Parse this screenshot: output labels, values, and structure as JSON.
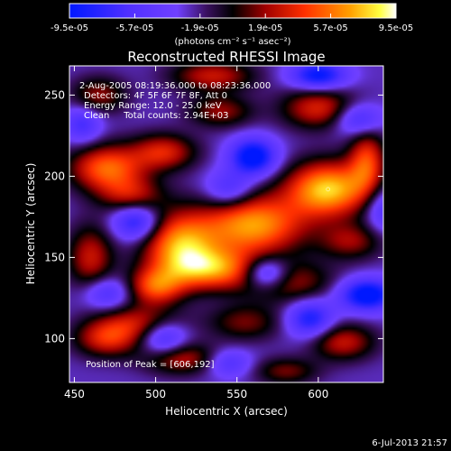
{
  "chart_data": {
    "type": "heatmap",
    "title": "Reconstructed RHESSI Image",
    "xlabel": "Heliocentric X (arcsec)",
    "ylabel": "Heliocentric Y (arcsec)",
    "xlim": [
      447,
      640
    ],
    "ylim": [
      73,
      268
    ],
    "x_ticks": [
      450,
      500,
      550,
      600
    ],
    "y_ticks": [
      100,
      150,
      200,
      250
    ],
    "colorbar": {
      "range": [
        -9.5e-05,
        9.5e-05
      ],
      "tick_labels": [
        "-9.5e-05",
        "-5.7e-05",
        "-1.9e-05",
        "1.9e-05",
        "5.7e-05",
        "9.5e-05"
      ],
      "unit_label": "(photons cm⁻² s⁻¹ asec⁻²)",
      "colormap": "rainbow-black-red-yellow-white"
    },
    "annotations": [
      "2-Aug-2005 08:19:36.000 to 08:23:36.000",
      "Detectors: 4F 5F 6F 7F 8F, Att 0",
      "Energy Range: 12.0 - 25.0 keV",
      "Clean     Total counts: 2.94E+03",
      "Position of Peak = [606,192]"
    ],
    "peak": [
      606,
      192
    ],
    "peak_value": 9.5e-05,
    "blobs": [
      {
        "x": 606,
        "y": 192,
        "v": 9.5e-05,
        "sx": 18,
        "sy": 12
      },
      {
        "x": 560,
        "y": 170,
        "v": 8.5e-05,
        "sx": 22,
        "sy": 13
      },
      {
        "x": 515,
        "y": 158,
        "v": 8e-05,
        "sx": 16,
        "sy": 14
      },
      {
        "x": 535,
        "y": 143,
        "v": 7e-05,
        "sx": 20,
        "sy": 9
      },
      {
        "x": 500,
        "y": 132,
        "v": 6e-05,
        "sx": 12,
        "sy": 8
      },
      {
        "x": 470,
        "y": 205,
        "v": 7e-05,
        "sx": 16,
        "sy": 10
      },
      {
        "x": 505,
        "y": 215,
        "v": 5e-05,
        "sx": 14,
        "sy": 8
      },
      {
        "x": 535,
        "y": 262,
        "v": 4.5e-05,
        "sx": 18,
        "sy": 7
      },
      {
        "x": 600,
        "y": 242,
        "v": 5e-05,
        "sx": 16,
        "sy": 9
      },
      {
        "x": 630,
        "y": 210,
        "v": 5.5e-05,
        "sx": 8,
        "sy": 14
      },
      {
        "x": 485,
        "y": 188,
        "v": 4e-05,
        "sx": 14,
        "sy": 8
      },
      {
        "x": 460,
        "y": 150,
        "v": 4.5e-05,
        "sx": 10,
        "sy": 14
      },
      {
        "x": 490,
        "y": 110,
        "v": 4e-05,
        "sx": 18,
        "sy": 8
      },
      {
        "x": 470,
        "y": 100,
        "v": 5e-05,
        "sx": 14,
        "sy": 8
      },
      {
        "x": 515,
        "y": 88,
        "v": 4.5e-05,
        "sx": 16,
        "sy": 7
      },
      {
        "x": 580,
        "y": 135,
        "v": 4e-05,
        "sx": 20,
        "sy": 9
      },
      {
        "x": 620,
        "y": 160,
        "v": 3.5e-05,
        "sx": 14,
        "sy": 8
      },
      {
        "x": 555,
        "y": 110,
        "v": 3e-05,
        "sx": 16,
        "sy": 8
      },
      {
        "x": 615,
        "y": 98,
        "v": 4.5e-05,
        "sx": 14,
        "sy": 8
      },
      {
        "x": 580,
        "y": 80,
        "v": 3e-05,
        "sx": 14,
        "sy": 6
      },
      {
        "x": 540,
        "y": 240,
        "v": 3.5e-05,
        "sx": 14,
        "sy": 7
      },
      {
        "x": 465,
        "y": 250,
        "v": 3.5e-05,
        "sx": 12,
        "sy": 8
      },
      {
        "x": 560,
        "y": 212,
        "v": -9e-05,
        "sx": 10,
        "sy": 8
      },
      {
        "x": 488,
        "y": 172,
        "v": -7e-05,
        "sx": 10,
        "sy": 8
      },
      {
        "x": 455,
        "y": 232,
        "v": -5e-05,
        "sx": 8,
        "sy": 8
      },
      {
        "x": 568,
        "y": 140,
        "v": -8e-05,
        "sx": 10,
        "sy": 7
      },
      {
        "x": 630,
        "y": 127,
        "v": -9e-05,
        "sx": 12,
        "sy": 7
      },
      {
        "x": 595,
        "y": 112,
        "v": -7e-05,
        "sx": 10,
        "sy": 8
      },
      {
        "x": 505,
        "y": 100,
        "v": -6e-05,
        "sx": 10,
        "sy": 8
      },
      {
        "x": 600,
        "y": 262,
        "v": -8e-05,
        "sx": 12,
        "sy": 6
      },
      {
        "x": 625,
        "y": 235,
        "v": -6e-05,
        "sx": 10,
        "sy": 7
      },
      {
        "x": 545,
        "y": 192,
        "v": -5e-05,
        "sx": 10,
        "sy": 8
      },
      {
        "x": 470,
        "y": 128,
        "v": -5e-05,
        "sx": 10,
        "sy": 7
      },
      {
        "x": 640,
        "y": 180,
        "v": -5e-05,
        "sx": 8,
        "sy": 10
      },
      {
        "x": 545,
        "y": 85,
        "v": -4.5e-05,
        "sx": 10,
        "sy": 6
      }
    ]
  },
  "footer": {
    "date": "6-Jul-2013 21:57"
  }
}
